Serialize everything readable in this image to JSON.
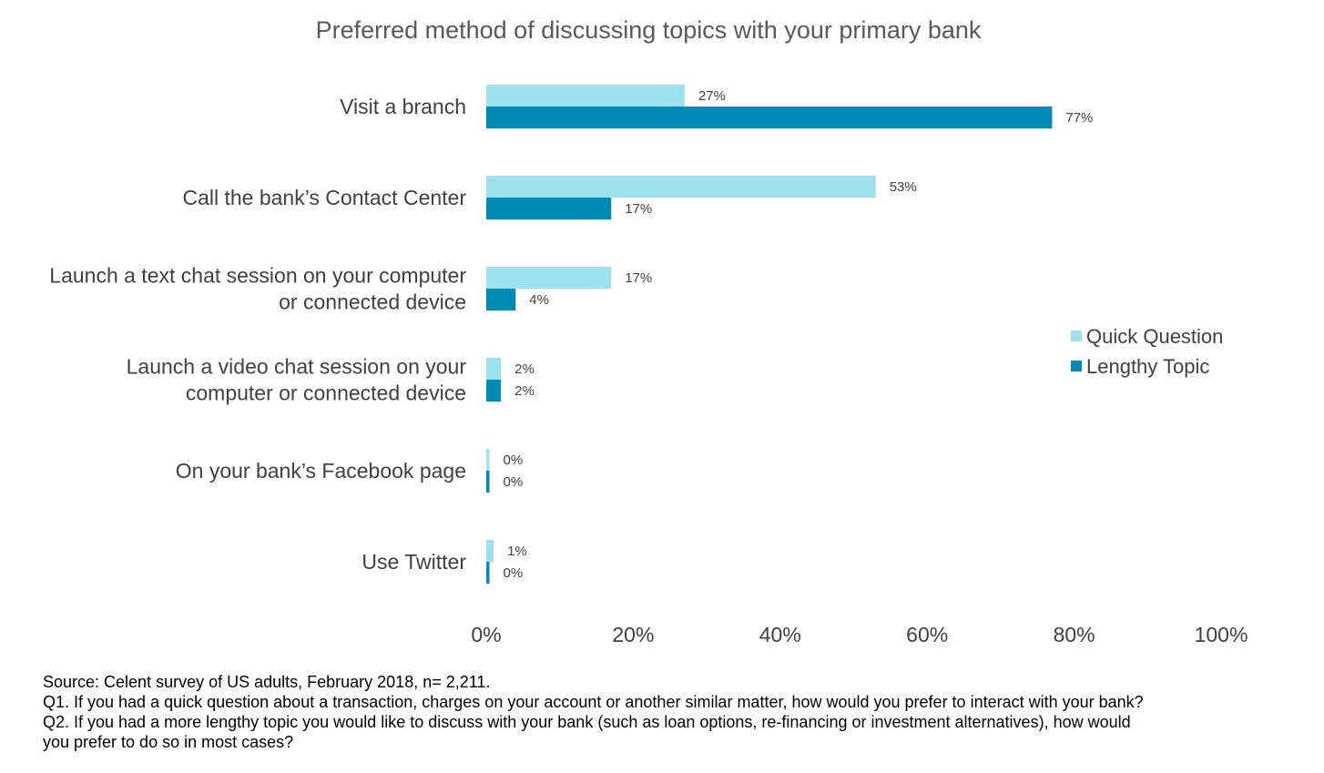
{
  "chart_data": {
    "type": "bar",
    "orientation": "horizontal",
    "title": "Preferred method of discussing topics with your primary bank",
    "categories": [
      [
        "Visit a branch"
      ],
      [
        "Call the bank’s Contact Center"
      ],
      [
        "Launch a text chat session on your computer",
        "or connected device"
      ],
      [
        "Launch a video chat session on your",
        "computer or connected device"
      ],
      [
        "On your bank’s Facebook page"
      ],
      [
        "Use Twitter"
      ]
    ],
    "series": [
      {
        "name": "Quick Question",
        "color": "#9DE0EE",
        "values": [
          27,
          53,
          17,
          2,
          0,
          1
        ],
        "labels": [
          "27%",
          "53%",
          "17%",
          "2%",
          "0%",
          "1%"
        ]
      },
      {
        "name": "Lengthy Topic",
        "color": "#008AB6",
        "values": [
          77,
          17,
          4,
          2,
          0,
          0
        ],
        "labels": [
          "77%",
          "17%",
          "4%",
          "2%",
          "0%",
          "0%"
        ]
      }
    ],
    "xlim": [
      0,
      100
    ],
    "xticks": [
      "0%",
      "20%",
      "40%",
      "60%",
      "80%",
      "100%"
    ],
    "grid": false,
    "legend_position": "right"
  },
  "notes": {
    "source": "Source: Celent survey of US adults, February 2018, n= 2,211.",
    "q1": "Q1. If you had a quick question about a transaction, charges on your account or another similar matter, how would you prefer to interact with your bank?",
    "q2_line1": "Q2. If you had a more lengthy topic you would like to discuss with your bank (such as loan options, re-financing or investment alternatives), how would",
    "q2_line2": "you prefer to do so in most cases?"
  }
}
